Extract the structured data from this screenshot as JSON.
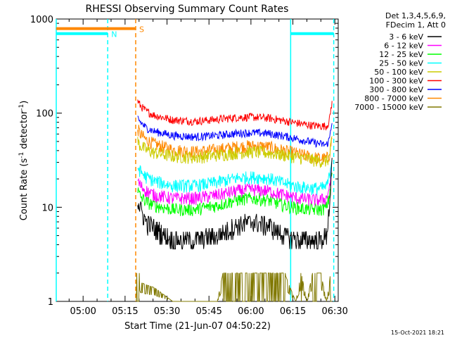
{
  "chart_data": {
    "type": "line",
    "title": "RHESSI Observing Summary Count Rates",
    "xlabel": "Start Time (21-Jun-07 04:50:22)",
    "ylabel_main": "Count Rate (s",
    "ylabel_sup1": "-1",
    "ylabel_mid": " detector",
    "ylabel_sup2": "-1",
    "ylabel_end": ")",
    "yscale": "log",
    "ylim": [
      1,
      1000
    ],
    "xlim_minutes": [
      290.4,
      391.2
    ],
    "y_ticks": [
      {
        "value": 1,
        "label": "1"
      },
      {
        "value": 10,
        "label": "10"
      },
      {
        "value": 100,
        "label": "100"
      },
      {
        "value": 1000,
        "label": "1000"
      }
    ],
    "x_ticks": [
      {
        "minute": 300,
        "label": "05:00"
      },
      {
        "minute": 315,
        "label": "05:15"
      },
      {
        "minute": 330,
        "label": "05:30"
      },
      {
        "minute": 345,
        "label": "05:45"
      },
      {
        "minute": 360,
        "label": "06:00"
      },
      {
        "minute": 375,
        "label": "06:15"
      },
      {
        "minute": 390,
        "label": "06:30"
      }
    ],
    "legend_header": [
      "Det 1,3,4,5,6,9,",
      "FDecim 1, Att 0"
    ],
    "legend_position": "right",
    "grid": false,
    "series": [
      {
        "name": "3 - 6 keV",
        "color": "#000000",
        "x": [
          319.5,
          320.5,
          322.5,
          325.5,
          332,
          340,
          348,
          355,
          360,
          366,
          372,
          377,
          382,
          385,
          387,
          388,
          389
        ],
        "y": [
          12,
          9.5,
          7,
          6,
          4.5,
          4.5,
          5,
          6.5,
          7,
          6.5,
          5,
          4.5,
          4.5,
          4.5,
          5,
          10,
          28
        ]
      },
      {
        "name": "6 - 12 keV",
        "color": "#ff00ff",
        "x": [
          319.5,
          320.5,
          322.5,
          325.5,
          332,
          340,
          348,
          355,
          360,
          366,
          372,
          377,
          382,
          385,
          387,
          388,
          389
        ],
        "y": [
          19,
          17,
          15,
          13.5,
          12.5,
          12.5,
          13.5,
          15,
          15.5,
          15,
          13.5,
          12.5,
          12,
          12,
          12.5,
          16,
          28
        ]
      },
      {
        "name": "12 - 25 keV",
        "color": "#00ff00",
        "x": [
          319.5,
          320.5,
          322.5,
          325.5,
          332,
          340,
          348,
          355,
          360,
          366,
          372,
          377,
          382,
          385,
          387,
          388,
          389
        ],
        "y": [
          15,
          13,
          11.5,
          10.5,
          9.5,
          9.5,
          10.5,
          12,
          12.5,
          12,
          10.5,
          9.8,
          9.5,
          9.5,
          10,
          13,
          24
        ]
      },
      {
        "name": "25 - 50 keV",
        "color": "#00ffff",
        "x": [
          319.5,
          320.5,
          322.5,
          325.5,
          332,
          340,
          348,
          355,
          360,
          366,
          372,
          377,
          382,
          385,
          387,
          388,
          389
        ],
        "y": [
          27,
          24,
          21,
          19,
          17,
          17,
          18.5,
          20.5,
          21,
          20.5,
          18,
          16.5,
          16,
          16,
          16.5,
          21,
          35
        ]
      },
      {
        "name": "50 - 100 keV",
        "color": "#cccc00",
        "x": [
          319.5,
          320.5,
          322.5,
          325.5,
          332,
          340,
          348,
          355,
          360,
          366,
          372,
          377,
          382,
          385,
          387,
          388,
          389
        ],
        "y": [
          50,
          45,
          41,
          38,
          35,
          34,
          36,
          38,
          39,
          38,
          36,
          34,
          32,
          31,
          31,
          34,
          52
        ]
      },
      {
        "name": "100 - 300 keV",
        "color": "#ff0000",
        "x": [
          319.5,
          320.5,
          322.5,
          325.5,
          332,
          340,
          348,
          355,
          360,
          366,
          372,
          377,
          382,
          385,
          387,
          388,
          389
        ],
        "y": [
          135,
          120,
          105,
          95,
          85,
          82,
          86,
          90,
          91,
          89,
          83,
          78,
          74,
          73,
          73,
          82,
          135
        ]
      },
      {
        "name": "300 - 800 keV",
        "color": "#0000ff",
        "x": [
          319.5,
          320.5,
          322.5,
          325.5,
          332,
          340,
          348,
          355,
          360,
          366,
          372,
          377,
          382,
          385,
          387,
          388,
          389
        ],
        "y": [
          90,
          80,
          70,
          64,
          58,
          56,
          58,
          61,
          62,
          61,
          57,
          53,
          49,
          47,
          46,
          52,
          85
        ]
      },
      {
        "name": "800 - 7000 keV",
        "color": "#ff8800",
        "x": [
          319.5,
          320.5,
          322.5,
          325.5,
          332,
          340,
          348,
          355,
          360,
          366,
          372,
          377,
          382,
          385,
          387,
          388,
          389
        ],
        "y": [
          68,
          60,
          52,
          47,
          41,
          39,
          41,
          44,
          45,
          44,
          40,
          37,
          34,
          33,
          33,
          36,
          56
        ]
      },
      {
        "name": "7000 - 15000 keV",
        "color": "#807800",
        "x": [
          319.0,
          320.0,
          320.5,
          322.5,
          325.5,
          332,
          340,
          348,
          350,
          355,
          360,
          366,
          372,
          376,
          378,
          380,
          382,
          385,
          387,
          388,
          389
        ],
        "y": [
          3,
          2,
          1.6,
          1.5,
          1.4,
          1,
          1,
          1,
          2,
          2,
          2,
          2,
          2,
          1,
          2,
          1,
          2,
          2,
          1,
          1.5,
          3
        ]
      }
    ],
    "annotations": {
      "spans": [
        {
          "label": "N",
          "color": "#00ffff",
          "x_start": 290.4,
          "x_end": 308.8,
          "y": 700
        },
        {
          "label": "",
          "color": "#00ffff",
          "x_start": 374.2,
          "x_end": 389.6,
          "y": 700
        },
        {
          "label": "S",
          "color": "#ff8800",
          "x_start": 290.4,
          "x_end": 318.8,
          "y": 790
        }
      ],
      "vlines": [
        {
          "color": "#00ffff",
          "x": 290.4,
          "style": "solid"
        },
        {
          "color": "#00ffff",
          "x": 308.8,
          "style": "dashed"
        },
        {
          "color": "#ff8800",
          "x": 318.8,
          "style": "dashed"
        },
        {
          "color": "#00ffff",
          "x": 374.2,
          "style": "solid"
        },
        {
          "color": "#00ffff",
          "x": 389.6,
          "style": "dashed"
        }
      ]
    },
    "footer_timestamp": "15-Oct-2021 18:21"
  }
}
